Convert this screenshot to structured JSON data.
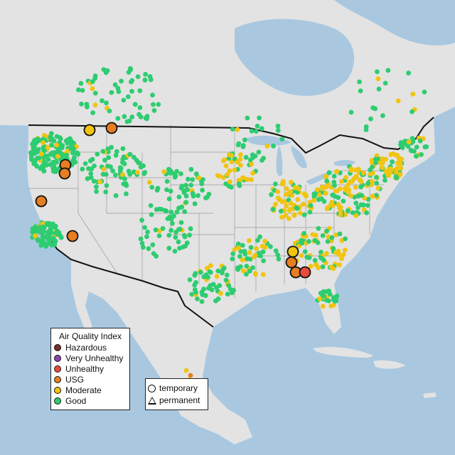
{
  "colors": {
    "ocean": "#a9c8e0",
    "land": "#e3e3e3",
    "lakes": "#a9c8e0",
    "border": "#111111",
    "state_lines": "#9a9a9a",
    "good": "#2ecc71",
    "moderate": "#f1c40f",
    "usg": "#e67e22",
    "unhealthy": "#e74c3c",
    "very_unhealthy": "#8e44ad",
    "hazardous": "#7b2c2c"
  },
  "legend": {
    "title": "Air Quality Index",
    "items": [
      {
        "label": "Hazardous",
        "color": "#7b2c2c"
      },
      {
        "label": "Very Unhealthy",
        "color": "#8e44ad"
      },
      {
        "label": "Unhealthy",
        "color": "#e74c3c"
      },
      {
        "label": "USG",
        "color": "#e67e22"
      },
      {
        "label": "Moderate",
        "color": "#f1c40f"
      },
      {
        "label": "Good",
        "color": "#2ecc71"
      }
    ]
  },
  "shape_legend": {
    "items": [
      {
        "label": "temporary",
        "shape": "circle-icon"
      },
      {
        "label": "permanent",
        "shape": "triangle-icon"
      }
    ]
  },
  "major_monitors": [
    {
      "aqi": "moderate"
    },
    {
      "aqi": "usg"
    },
    {
      "aqi": "usg"
    },
    {
      "aqi": "usg"
    },
    {
      "aqi": "usg"
    },
    {
      "aqi": "usg"
    },
    {
      "aqi": "moderate"
    },
    {
      "aqi": "usg"
    },
    {
      "aqi": "usg"
    },
    {
      "aqi": "unhealthy"
    }
  ]
}
